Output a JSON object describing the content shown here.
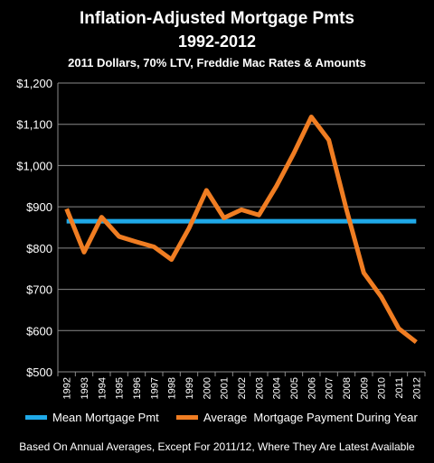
{
  "chart_data": {
    "type": "line",
    "title": "Inflation-Adjusted Mortgage Pmts",
    "title_line2": "1992-2012",
    "subtitle": "2011 Dollars, 70% LTV, Freddie Mac Rates & Amounts",
    "footnote": "Based On Annual Averages, Except For 2011/12, Where They Are Latest Available",
    "xlabel": "",
    "ylabel": "",
    "categories": [
      "1992",
      "1993",
      "1994",
      "1995",
      "1996",
      "1997",
      "1998",
      "1999",
      "2000",
      "2001",
      "2002",
      "2003",
      "2004",
      "2005",
      "2006",
      "2007",
      "2008",
      "2009",
      "2010",
      "2011",
      "2012"
    ],
    "ylim": [
      500,
      1200
    ],
    "yticks": [
      500,
      600,
      700,
      800,
      900,
      1000,
      1100,
      1200
    ],
    "ytick_labels": [
      "$500",
      "$600",
      "$700",
      "$800",
      "$900",
      "$1,000",
      "$1,100",
      "$1,200"
    ],
    "grid": "horizontal",
    "legend_position": "bottom",
    "series": [
      {
        "name": "Mean Mortgage Pmt",
        "color": "#1fa9e8",
        "values": [
          865,
          865,
          865,
          865,
          865,
          865,
          865,
          865,
          865,
          865,
          865,
          865,
          865,
          865,
          865,
          865,
          865,
          865,
          865,
          865,
          865
        ]
      },
      {
        "name": "Average  Mortgage Payment During Year",
        "color": "#f07d22",
        "values": [
          895,
          790,
          875,
          828,
          815,
          803,
          772,
          848,
          940,
          873,
          893,
          880,
          950,
          1030,
          1118,
          1062,
          895,
          740,
          682,
          605,
          572
        ]
      }
    ]
  }
}
